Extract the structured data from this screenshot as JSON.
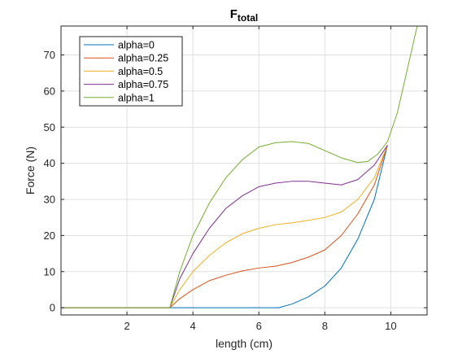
{
  "chart_data": {
    "type": "line",
    "title": "F",
    "title_subscript": "total",
    "xlabel": "length (cm)",
    "ylabel": "Force (N)",
    "xlim": [
      0,
      11.1
    ],
    "ylim": [
      -2,
      78
    ],
    "xticks": [
      2,
      4,
      6,
      8,
      10
    ],
    "yticks": [
      0,
      10,
      20,
      30,
      40,
      50,
      60,
      70
    ],
    "grid": true,
    "legend_position": "top-left",
    "series": [
      {
        "name": "alpha=0",
        "color": "#0072BD",
        "x": [
          0,
          3.3,
          6.6,
          7,
          7.5,
          8,
          8.5,
          9,
          9.5,
          9.9
        ],
        "y": [
          0,
          0,
          0,
          1,
          3,
          6,
          11,
          19,
          30,
          45
        ]
      },
      {
        "name": "alpha=0.25",
        "color": "#D95319",
        "x": [
          0,
          3.3,
          3.6,
          4,
          4.5,
          5,
          5.5,
          6,
          6.5,
          7,
          7.5,
          8,
          8.5,
          9,
          9.5,
          9.9
        ],
        "y": [
          0,
          0,
          2.5,
          5,
          7.5,
          9,
          10.2,
          11,
          11.5,
          12.5,
          14,
          16,
          20,
          26,
          34,
          45
        ]
      },
      {
        "name": "alpha=0.5",
        "color": "#EDB120",
        "x": [
          0,
          3.3,
          3.6,
          4,
          4.5,
          5,
          5.5,
          6,
          6.5,
          7,
          7.5,
          8,
          8.5,
          9,
          9.5,
          9.9
        ],
        "y": [
          0,
          0,
          5,
          10,
          14.5,
          18,
          20.5,
          22,
          23,
          23.5,
          24.2,
          25,
          26.5,
          30,
          36,
          45
        ]
      },
      {
        "name": "alpha=0.75",
        "color": "#7E2F8E",
        "x": [
          0,
          3.3,
          3.6,
          4,
          4.5,
          5,
          5.5,
          6,
          6.5,
          7,
          7.5,
          8,
          8.5,
          9,
          9.5,
          9.9
        ],
        "y": [
          0,
          0,
          8,
          15,
          22,
          27.5,
          31,
          33.5,
          34.5,
          35,
          35,
          34.5,
          34,
          35.5,
          39.5,
          45
        ]
      },
      {
        "name": "alpha=1",
        "color": "#77AC30",
        "x": [
          0,
          3.3,
          3.6,
          4,
          4.5,
          5,
          5.5,
          6,
          6.5,
          7,
          7.5,
          8,
          8.5,
          9,
          9.3,
          9.6,
          9.9,
          10.2,
          10.5,
          10.8,
          11.1
        ],
        "y": [
          0,
          0,
          10,
          20,
          29,
          36,
          41,
          44.5,
          45.7,
          46,
          45.5,
          43.5,
          41.5,
          40.2,
          40.5,
          42.5,
          46,
          54,
          66,
          78,
          78
        ]
      }
    ]
  }
}
